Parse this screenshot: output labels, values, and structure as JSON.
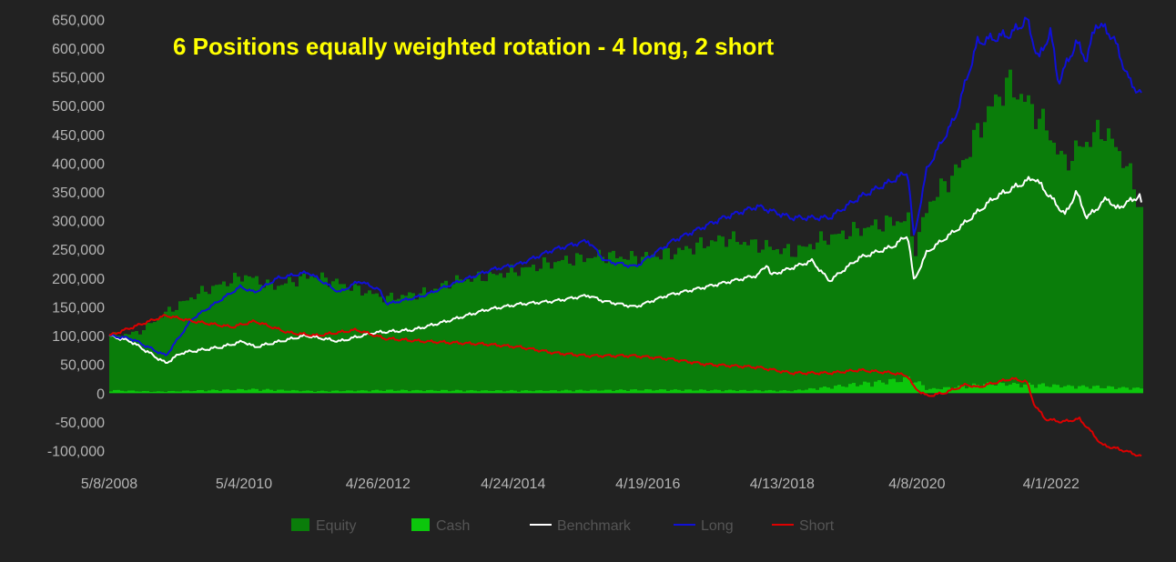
{
  "chart_data": {
    "type": "area",
    "title": "6 Positions equally weighted rotation - 4 long, 2 short",
    "xlabel": "",
    "ylabel": "",
    "ylim": [
      -115000,
      660000
    ],
    "y_ticks": [
      650000,
      600000,
      550000,
      500000,
      450000,
      400000,
      350000,
      300000,
      250000,
      200000,
      150000,
      100000,
      50000,
      0,
      -50000,
      -100000
    ],
    "y_tick_labels": [
      "650,000",
      "600,000",
      "550,000",
      "500,000",
      "450,000",
      "400,000",
      "350,000",
      "300,000",
      "250,000",
      "200,000",
      "150,000",
      "100,000",
      "50,000",
      "0",
      "-50,000",
      "-100,000"
    ],
    "x_ticks": [
      "2008-05-08",
      "2010-05-04",
      "2012-04-26",
      "2014-04-24",
      "2016-04-19",
      "2018-04-13",
      "2020-04-08",
      "2022-04-01"
    ],
    "x_tick_labels": [
      "5/8/2008",
      "5/4/2010",
      "4/26/2012",
      "4/24/2014",
      "4/19/2016",
      "4/13/2018",
      "4/8/2020",
      "4/1/2022"
    ],
    "x_range": [
      "2008-05-08",
      "2023-08-01"
    ],
    "grid": false,
    "legend_placement": "bottom",
    "series": [
      {
        "name": "Equity",
        "kind": "bar",
        "color": "#0a7d0a",
        "x": [
          "2008-05-08",
          "2008-10-01",
          "2009-03-01",
          "2009-09-01",
          "2010-05-01",
          "2010-10-01",
          "2011-05-01",
          "2011-10-01",
          "2012-06-01",
          "2013-01-01",
          "2013-06-01",
          "2014-01-01",
          "2014-06-01",
          "2015-01-01",
          "2015-09-01",
          "2016-02-01",
          "2016-09-01",
          "2017-06-01",
          "2018-01-01",
          "2018-06-01",
          "2018-12-01",
          "2019-06-01",
          "2019-12-01",
          "2020-02-15",
          "2020-03-20",
          "2020-06-01",
          "2020-12-01",
          "2021-04-01",
          "2021-08-01",
          "2021-12-01",
          "2022-03-01",
          "2022-06-01",
          "2022-09-01",
          "2023-01-01",
          "2023-05-01",
          "2023-08-01"
        ],
        "y": [
          100000,
          105000,
          140000,
          175000,
          205000,
          185000,
          205000,
          190000,
          165000,
          175000,
          195000,
          205000,
          215000,
          230000,
          240000,
          235000,
          245000,
          270000,
          255000,
          245000,
          270000,
          285000,
          300000,
          300000,
          250000,
          330000,
          400000,
          480000,
          540000,
          500000,
          460000,
          400000,
          430000,
          460000,
          400000,
          310000
        ]
      },
      {
        "name": "Cash",
        "kind": "bar",
        "color": "#0cc70c",
        "x": [
          "2008-05-08",
          "2009-01-01",
          "2010-06-01",
          "2011-06-01",
          "2012-06-01",
          "2014-06-01",
          "2016-06-01",
          "2018-06-01",
          "2020-03-01",
          "2020-06-01",
          "2021-06-01",
          "2022-06-01",
          "2023-08-01"
        ],
        "y": [
          6000,
          3000,
          8000,
          4000,
          6000,
          5000,
          7000,
          5000,
          30000,
          8000,
          20000,
          15000,
          10000
        ]
      },
      {
        "name": "Benchmark",
        "kind": "line",
        "color": "#ffffff",
        "x": [
          "2008-05-08",
          "2008-09-01",
          "2009-03-09",
          "2009-06-01",
          "2010-01-01",
          "2010-05-01",
          "2010-07-01",
          "2011-04-01",
          "2011-10-01",
          "2012-04-01",
          "2012-11-01",
          "2013-05-01",
          "2013-12-01",
          "2014-06-01",
          "2014-12-01",
          "2015-06-01",
          "2015-08-25",
          "2016-02-11",
          "2016-08-01",
          "2017-03-01",
          "2017-12-01",
          "2018-01-26",
          "2018-02-08",
          "2018-09-20",
          "2018-12-24",
          "2019-06-01",
          "2019-12-01",
          "2020-02-19",
          "2020-03-23",
          "2020-06-01",
          "2020-12-01",
          "2021-06-01",
          "2021-12-31",
          "2022-06-16",
          "2022-08-15",
          "2022-10-12",
          "2023-02-01",
          "2023-03-15",
          "2023-07-31",
          "2023-08-01"
        ],
        "y": [
          100000,
          90000,
          52000,
          70000,
          80000,
          90000,
          80000,
          100000,
          90000,
          105000,
          110000,
          125000,
          145000,
          155000,
          160000,
          170000,
          160000,
          150000,
          170000,
          185000,
          205000,
          225000,
          205000,
          230000,
          195000,
          235000,
          255000,
          275000,
          195000,
          245000,
          290000,
          340000,
          375000,
          310000,
          350000,
          305000,
          340000,
          320000,
          345000,
          330000
        ]
      },
      {
        "name": "Long",
        "kind": "line",
        "color": "#1010d8",
        "x": [
          "2008-05-08",
          "2008-09-01",
          "2009-03-09",
          "2009-08-01",
          "2010-04-15",
          "2010-07-01",
          "2010-11-01",
          "2011-04-15",
          "2011-10-01",
          "2012-01-15",
          "2012-05-01",
          "2012-06-15",
          "2013-01-01",
          "2013-06-01",
          "2014-01-01",
          "2014-06-01",
          "2014-12-01",
          "2015-06-01",
          "2015-09-01",
          "2016-02-11",
          "2016-09-01",
          "2017-06-01",
          "2017-12-01",
          "2018-06-01",
          "2018-12-24",
          "2019-06-01",
          "2019-12-01",
          "2020-02-19",
          "2020-03-23",
          "2020-06-01",
          "2020-11-01",
          "2021-03-01",
          "2021-09-01",
          "2021-11-20",
          "2022-01-24",
          "2022-03-29",
          "2022-05-10",
          "2022-08-15",
          "2022-10-10",
          "2022-12-01",
          "2023-03-01",
          "2023-04-15",
          "2023-06-01",
          "2023-08-01"
        ],
        "y": [
          100000,
          95000,
          65000,
          130000,
          185000,
          175000,
          200000,
          210000,
          175000,
          195000,
          180000,
          155000,
          170000,
          190000,
          215000,
          225000,
          250000,
          265000,
          230000,
          220000,
          265000,
          305000,
          325000,
          305000,
          305000,
          340000,
          370000,
          385000,
          270000,
          390000,
          480000,
          610000,
          625000,
          650000,
          580000,
          630000,
          540000,
          610000,
          580000,
          645000,
          620000,
          580000,
          540000,
          520000
        ]
      },
      {
        "name": "Short",
        "kind": "line",
        "color": "#dd0000",
        "x": [
          "2008-05-08",
          "2008-08-01",
          "2009-03-09",
          "2009-08-01",
          "2010-03-01",
          "2010-07-01",
          "2011-01-01",
          "2011-06-01",
          "2012-01-01",
          "2012-06-01",
          "2013-01-01",
          "2013-12-01",
          "2014-06-01",
          "2014-12-01",
          "2015-06-01",
          "2016-02-01",
          "2016-08-01",
          "2017-03-01",
          "2017-12-01",
          "2018-06-01",
          "2019-01-01",
          "2019-06-01",
          "2019-12-01",
          "2020-02-19",
          "2020-03-23",
          "2020-06-01",
          "2020-09-01",
          "2021-01-01",
          "2021-03-01",
          "2021-06-01",
          "2021-09-01",
          "2021-11-20",
          "2022-01-01",
          "2022-03-01",
          "2022-06-01",
          "2022-09-01",
          "2022-10-15",
          "2023-01-01",
          "2023-05-01",
          "2023-08-01"
        ],
        "y": [
          100000,
          110000,
          135000,
          125000,
          115000,
          125000,
          105000,
          100000,
          110000,
          95000,
          90000,
          85000,
          80000,
          70000,
          65000,
          65000,
          60000,
          50000,
          45000,
          35000,
          35000,
          40000,
          35000,
          30000,
          10000,
          -5000,
          0,
          15000,
          10000,
          18000,
          25000,
          20000,
          -20000,
          -45000,
          -50000,
          -45000,
          -60000,
          -90000,
          -100000,
          -110000
        ]
      }
    ]
  }
}
